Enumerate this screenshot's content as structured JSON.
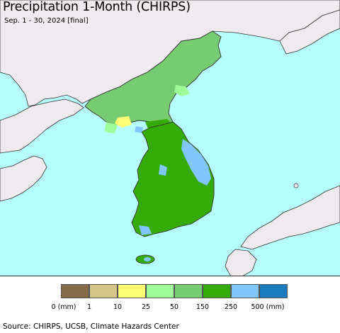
{
  "title": "Precipitation 1-Month (CHIRPS)",
  "subtitle": "Sep. 1 - 30, 2024 [final]",
  "source": "Source: CHIRPS, UCSB, Climate Hazards Center",
  "colors": {
    "ocean": "#b6fefe",
    "land_outside": "#eeeaee",
    "border": "#333333"
  },
  "legend": {
    "unit": "mm",
    "swatches": [
      {
        "range": "0-1",
        "color": "#856b47"
      },
      {
        "range": "1-10",
        "color": "#d6c589"
      },
      {
        "range": "10-25",
        "color": "#fdfe74"
      },
      {
        "range": "25-50",
        "color": "#9dfb98"
      },
      {
        "range": "50-150",
        "color": "#77cc72"
      },
      {
        "range": "150-250",
        "color": "#34ab08"
      },
      {
        "range": "250-500",
        "color": "#81c6fd"
      },
      {
        "range": ">500",
        "color": "#1b7dbf"
      }
    ],
    "ticks": [
      "0 (mm)",
      "1",
      "10",
      "25",
      "50",
      "150",
      "250",
      "500 (mm)"
    ]
  }
}
